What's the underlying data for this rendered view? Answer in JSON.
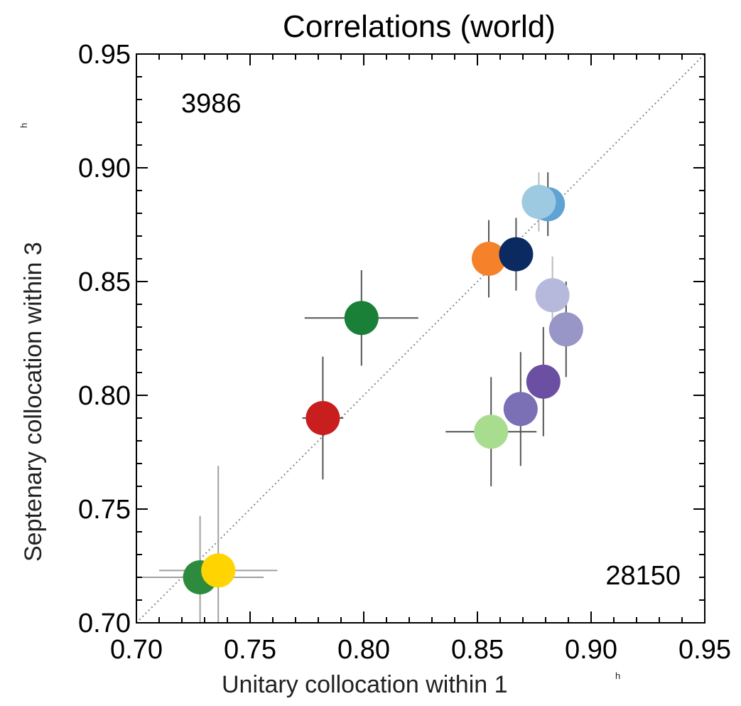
{
  "chart_data": {
    "type": "scatter",
    "title": "Correlations (world)",
    "xlabel": "Unitary collocation within 1",
    "xlabel_superscript": "h",
    "ylabel": "Septenary collocation within 3",
    "ylabel_superscript": "h",
    "xlim": [
      0.7,
      0.95
    ],
    "ylim": [
      0.7,
      0.95
    ],
    "xticks": [
      "0.70",
      "0.75",
      "0.80",
      "0.85",
      "0.90",
      "0.95"
    ],
    "yticks": [
      "0.70",
      "0.75",
      "0.80",
      "0.85",
      "0.90",
      "0.95"
    ],
    "grid": false,
    "diagonal_reference": true,
    "annotations": {
      "top_left": "3986",
      "bottom_right": "28150"
    },
    "points": [
      {
        "x": 0.728,
        "y": 0.72,
        "xerr": 0.028,
        "yerr": 0.027,
        "color": "#2e8b3e",
        "err_color": "#a0a0a0"
      },
      {
        "x": 0.736,
        "y": 0.723,
        "xerr": 0.026,
        "yerr": 0.046,
        "color": "#ffd400",
        "err_color": "#a0a0a0"
      },
      {
        "x": 0.782,
        "y": 0.79,
        "xerr": 0.009,
        "yerr": 0.027,
        "color": "#c81e1e",
        "err_color": "#555555"
      },
      {
        "x": 0.799,
        "y": 0.834,
        "xerr": 0.025,
        "yerr": 0.021,
        "color": "#1a7f37",
        "err_color": "#555555"
      },
      {
        "x": 0.855,
        "y": 0.86,
        "xerr": 0.007,
        "yerr": 0.017,
        "color": "#f5822a",
        "err_color": "#555555"
      },
      {
        "x": 0.867,
        "y": 0.862,
        "xerr": 0.005,
        "yerr": 0.016,
        "color": "#0c2a62",
        "err_color": "#555555"
      },
      {
        "x": 0.881,
        "y": 0.884,
        "xerr": 0.006,
        "yerr": 0.014,
        "color": "#5ea3d4",
        "err_color": "#555555"
      },
      {
        "x": 0.877,
        "y": 0.885,
        "xerr": 0.007,
        "yerr": 0.013,
        "color": "#9ecae1",
        "err_color": "#bbbbbb"
      },
      {
        "x": 0.883,
        "y": 0.844,
        "xerr": 0.004,
        "yerr": 0.017,
        "color": "#b7b9dc",
        "err_color": "#bbbbbb"
      },
      {
        "x": 0.889,
        "y": 0.829,
        "xerr": 0.004,
        "yerr": 0.021,
        "color": "#9896c6",
        "err_color": "#555555"
      },
      {
        "x": 0.879,
        "y": 0.806,
        "xerr": 0.004,
        "yerr": 0.024,
        "color": "#6a4fa2",
        "err_color": "#555555"
      },
      {
        "x": 0.869,
        "y": 0.794,
        "xerr": 0.004,
        "yerr": 0.025,
        "color": "#7b6fb6",
        "err_color": "#555555"
      },
      {
        "x": 0.856,
        "y": 0.784,
        "xerr": 0.02,
        "yerr": 0.024,
        "color": "#a8dd8f",
        "err_color": "#555555"
      }
    ]
  }
}
